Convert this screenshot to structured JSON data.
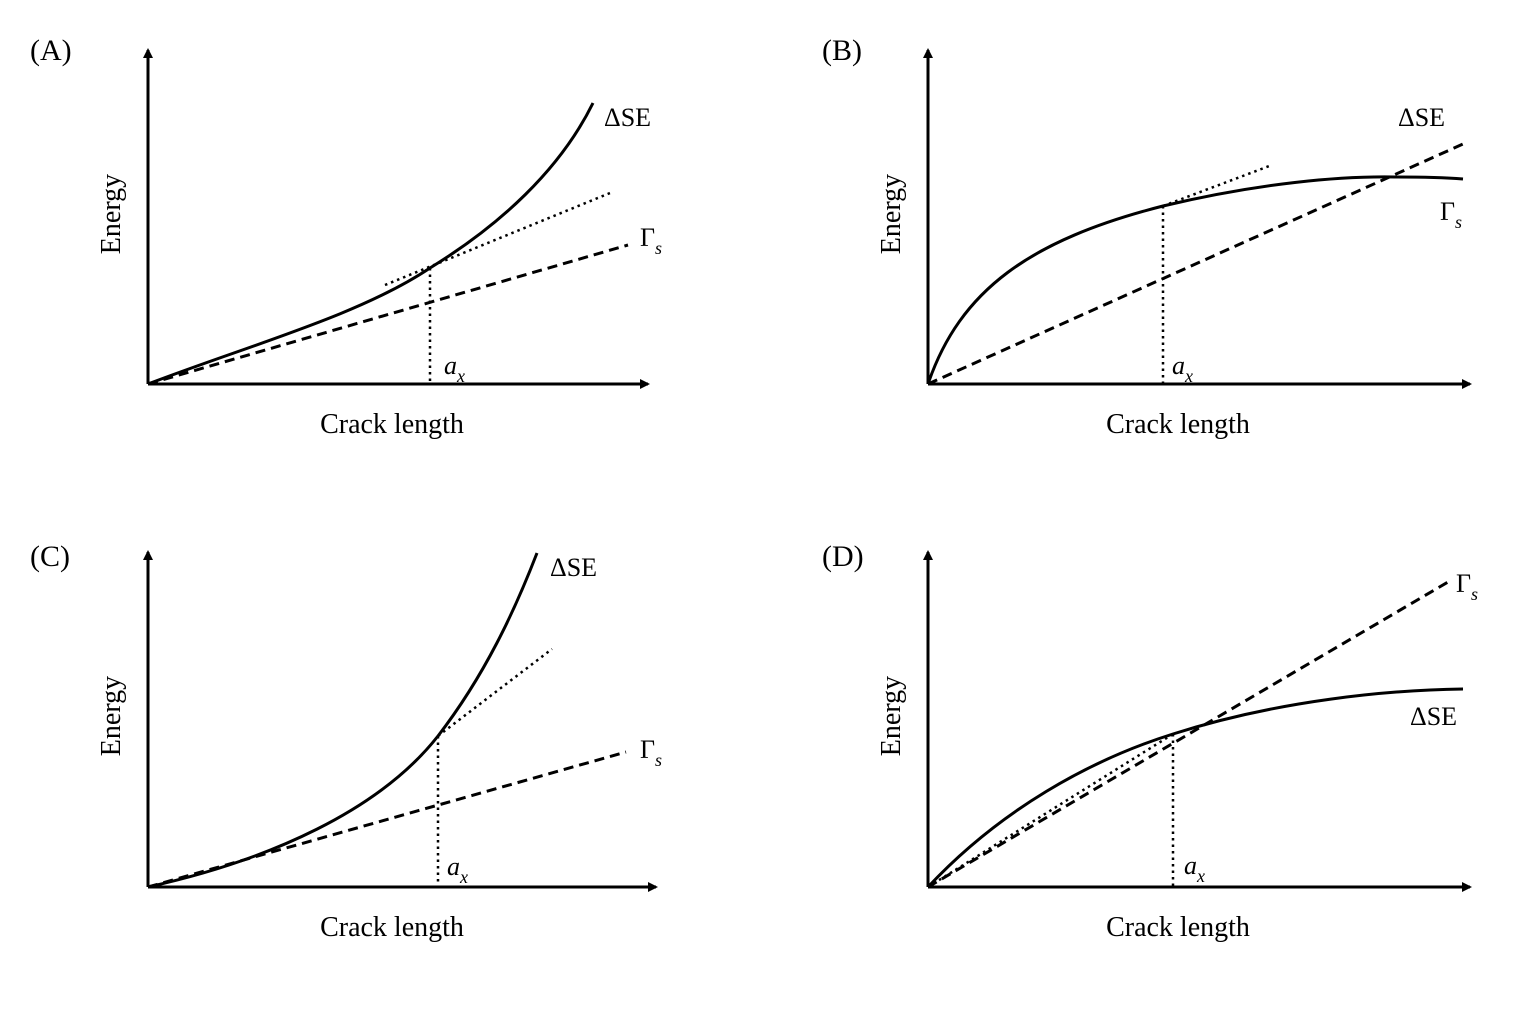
{
  "panels": [
    {
      "id": "A",
      "label": "(A)",
      "xlabel": "Crack length",
      "ylabel": "Energy",
      "delta_se_label": "ΔSE",
      "gamma_label": "Γ",
      "gamma_sub": "s",
      "ax_label": "a",
      "ax_sub": "x"
    },
    {
      "id": "B",
      "label": "(B)",
      "xlabel": "Crack length",
      "ylabel": "Energy",
      "delta_se_label": "ΔSE",
      "gamma_label": "Γ",
      "gamma_sub": "s",
      "ax_label": "a",
      "ax_sub": "x"
    },
    {
      "id": "C",
      "label": "(C)",
      "xlabel": "Crack length",
      "ylabel": "Energy",
      "delta_se_label": "ΔSE",
      "gamma_label": "Γ",
      "gamma_sub": "s",
      "ax_label": "a",
      "ax_sub": "x"
    },
    {
      "id": "D",
      "label": "(D)",
      "xlabel": "Crack length",
      "ylabel": "Energy",
      "delta_se_label": "ΔSE",
      "gamma_label": "Γ",
      "gamma_sub": "s",
      "ax_label": "a",
      "ax_sub": "x"
    }
  ]
}
